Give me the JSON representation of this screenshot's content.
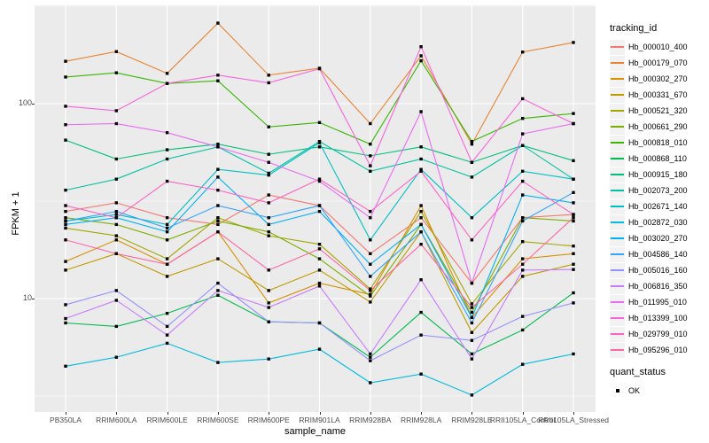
{
  "figure": {
    "y_axis_title": "FPKM + 1",
    "x_axis_title": "sample_name",
    "legend_tracking_title": "tracking_id",
    "legend_quant_title": "quant_status",
    "quant_status_items": [
      {
        "label": "OK",
        "marker": "black-square"
      }
    ],
    "panel_bg": "#EBEBEB",
    "gridline_color": "#FFFFFF",
    "tick_text_color": "#4D4D4D",
    "axis_text_color": "#000000",
    "marker_color": "#000000",
    "legend_key_bg": "#F2F2F2"
  },
  "chart_data": {
    "type": "line",
    "title": "",
    "xlabel": "sample_name",
    "ylabel": "FPKM + 1",
    "y_scale": "log10",
    "y_ticks": [
      10,
      100
    ],
    "y_minor_ticks": [
      3.162,
      31.62,
      316.2
    ],
    "ylim_approx": [
      2.6,
      320
    ],
    "grid": true,
    "legend_position": "right",
    "marker": "filled-black-square",
    "categories": [
      "PB350LA",
      "RRIM600LA",
      "RRIM600LE",
      "RRIM600SE",
      "RRIM600PE",
      "RRIM901LA",
      "RRIM928BA",
      "RRIM928LA",
      "RRIM928LE",
      "RRII105LA_Control",
      "RRII105LA_Stressed"
    ],
    "series": [
      {
        "name": "Hb_000010_400",
        "color": "#F8766D",
        "values": [
          28,
          31,
          26,
          24,
          34,
          30,
          17,
          26,
          12,
          26,
          27
        ]
      },
      {
        "name": "Hb_000179_070",
        "color": "#EA8331",
        "values": [
          165,
          185,
          143,
          259,
          140,
          152,
          79,
          176,
          62,
          184,
          206
        ]
      },
      {
        "name": "Hb_000302_270",
        "color": "#D89000",
        "values": [
          15.5,
          20,
          15,
          22,
          9.5,
          12,
          10.5,
          30,
          8,
          16,
          17
        ]
      },
      {
        "name": "Hb_000331_670",
        "color": "#C09B00",
        "values": [
          14,
          17,
          13,
          16,
          11,
          14,
          9.6,
          22,
          6.7,
          13,
          15
        ]
      },
      {
        "name": "Hb_000521_320",
        "color": "#A3A500",
        "values": [
          23,
          21,
          16,
          26,
          21,
          19,
          11.2,
          28,
          9.4,
          19.6,
          18.6
        ]
      },
      {
        "name": "Hb_000661_290",
        "color": "#7CAE00",
        "values": [
          26,
          24,
          20,
          25,
          22,
          16,
          10.3,
          24,
          8.5,
          26,
          25
        ]
      },
      {
        "name": "Hb_000818_010",
        "color": "#39B600",
        "values": [
          137,
          144,
          127,
          131,
          76,
          80,
          62,
          166,
          64,
          84,
          89
        ]
      },
      {
        "name": "Hb_000868_110",
        "color": "#00BB4E",
        "values": [
          7.5,
          7.2,
          8.4,
          10.4,
          7.6,
          7.5,
          5,
          8.5,
          5.2,
          6.9,
          10.7
        ]
      },
      {
        "name": "Hb_000915_180",
        "color": "#00BF7D",
        "values": [
          65,
          52,
          58,
          62,
          55,
          60,
          54,
          60,
          50,
          61,
          51
        ]
      },
      {
        "name": "Hb_002073_200",
        "color": "#00C1A3",
        "values": [
          36,
          41,
          52,
          60,
          44,
          64,
          45,
          52,
          42,
          61,
          41
        ]
      },
      {
        "name": "Hb_002671_140",
        "color": "#00BFC4",
        "values": [
          25,
          27,
          24,
          46,
          43,
          63,
          20,
          46,
          26,
          45,
          41
        ]
      },
      {
        "name": "Hb_002872_030",
        "color": "#00BAE0",
        "values": [
          4.5,
          5,
          5.9,
          4.7,
          4.9,
          5.5,
          3.7,
          4.1,
          3.2,
          4.6,
          5.2
        ]
      },
      {
        "name": "Hb_003020_270",
        "color": "#00B0F6",
        "values": [
          24,
          26,
          22,
          42,
          24,
          28,
          15,
          24,
          8,
          34,
          31
        ]
      },
      {
        "name": "Hb_004586_140",
        "color": "#35A2FF",
        "values": [
          25,
          28,
          23,
          30,
          26,
          30,
          13,
          22,
          7.5,
          25,
          35
        ]
      },
      {
        "name": "Hb_005016_160",
        "color": "#9590FF",
        "values": [
          9.3,
          11,
          7.2,
          12,
          7.6,
          7.5,
          4.8,
          6.5,
          6.1,
          8.1,
          9.5
        ]
      },
      {
        "name": "Hb_006816_350",
        "color": "#C77CFF",
        "values": [
          7.9,
          9.8,
          6.5,
          11,
          9,
          11.6,
          5.2,
          12.5,
          4.9,
          14,
          14.1
        ]
      },
      {
        "name": "Hb_011995_010",
        "color": "#E76BF3",
        "values": [
          78,
          79,
          71,
          60,
          50,
          40,
          26,
          91,
          12,
          70,
          79
        ]
      },
      {
        "name": "Hb_013399_100",
        "color": "#FA62DB",
        "values": [
          97,
          92,
          127,
          140,
          128,
          151,
          48,
          196,
          50,
          106,
          79
        ]
      },
      {
        "name": "Hb_029799_010",
        "color": "#FF61C3",
        "values": [
          30,
          26,
          40,
          36,
          31,
          41,
          28,
          45,
          20,
          40,
          27
        ]
      },
      {
        "name": "Hb_095296_010",
        "color": "#FF67A4",
        "values": [
          20,
          17,
          15,
          22,
          14,
          18,
          11,
          19,
          9,
          15,
          26
        ]
      }
    ]
  }
}
